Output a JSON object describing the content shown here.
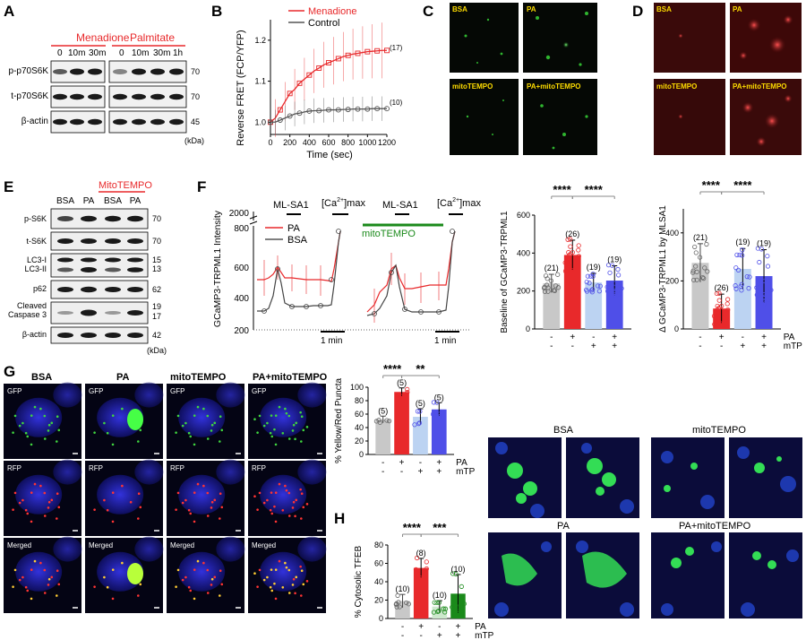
{
  "panel_letters": [
    "A",
    "B",
    "C",
    "D",
    "E",
    "F",
    "G",
    "H"
  ],
  "panelA": {
    "group1": "Menadione",
    "group2": "Palmitate",
    "times1": [
      "0",
      "10m",
      "30m"
    ],
    "times2": [
      "0",
      "10m",
      "30m",
      "1h"
    ],
    "rows": [
      "p-p70S6K",
      "t-p70S6K",
      "β-actin"
    ],
    "kda": [
      "70",
      "70",
      "45"
    ],
    "unit": "(kDa)"
  },
  "panelB": {
    "ylabel": "Reverse FRET (FCP/YFP)",
    "xlabel": "Time (sec)",
    "legend": [
      "Menadione",
      "Control"
    ],
    "n_labels": [
      "(17)",
      "(10)"
    ]
  },
  "panelC": {
    "labels": [
      "BSA",
      "PA",
      "mitoTEMPO",
      "PA+mitoTEMPO"
    ]
  },
  "panelD": {
    "labels": [
      "BSA",
      "PA",
      "mitoTEMPO",
      "PA+mitoTEMPO"
    ]
  },
  "panelE": {
    "header": "MitoTEMPO",
    "lanes": [
      "BSA",
      "PA",
      "BSA",
      "PA"
    ],
    "rows": [
      "p-S6K",
      "t-S6K",
      "LC3-I",
      "LC3-II",
      "p62",
      "Cleaved",
      "Caspase 3",
      "β-actin"
    ],
    "kda": [
      "70",
      "70",
      "15",
      "13",
      "62",
      "19",
      "17",
      "42"
    ],
    "unit": "(kDa)"
  },
  "panelF": {
    "ylabel": "GCaMP3-TRPML1 Intensity",
    "stim": "ML-SA1",
    "camax": "[Ca",
    "camax_sup": "2+",
    "camax_end": "]max",
    "legend": [
      "PA",
      "BSA"
    ],
    "mito": "mitoTEMPO",
    "scalebar": "1 min",
    "bar1_ylabel": "Baseline of GCaMP3-TRPML1",
    "bar2_ylabel": "Δ GCaMP3-TRPML1 by MLSA1",
    "row_pa": "PA",
    "row_mtp": "mTP",
    "sig": "****"
  },
  "panelG": {
    "cols": [
      "BSA",
      "PA",
      "mitoTEMPO",
      "PA+mitoTEMPO"
    ],
    "rows": [
      "GFP",
      "RFP",
      "Merged"
    ],
    "bar_ylabel": "% Yellow/Red Puncta",
    "sig": [
      "****",
      "**"
    ]
  },
  "panelH": {
    "ylabel": "% Cytosolic TFEB",
    "sig": [
      "****",
      "***"
    ],
    "img_labels": [
      "BSA",
      "mitoTEMPO",
      "PA",
      "PA+mitoTEMPO"
    ]
  },
  "colors": {
    "red": "#e8292b",
    "lightblue": "#bcd3f2",
    "blue": "#4f4fe8",
    "gray": "#c8c8c8",
    "green": "#1b8a1b"
  },
  "chart_data": [
    {
      "type": "line",
      "title": "",
      "xlabel": "Time (sec)",
      "ylabel": "Reverse FRET (FCP/YFP)",
      "x": [
        0,
        50,
        100,
        150,
        200,
        250,
        300,
        350,
        400,
        450,
        500,
        550,
        600,
        650,
        700,
        750,
        800,
        850,
        900,
        950,
        1000,
        1050,
        1100,
        1150,
        1200
      ],
      "xticks": [
        0,
        200,
        400,
        600,
        800,
        1000,
        1200
      ],
      "yticks": [
        1.0,
        1.1,
        1.2
      ],
      "ylim": [
        0.97,
        1.25
      ],
      "series": [
        {
          "name": "Menadione",
          "values": [
            1.0,
            1.01,
            1.03,
            1.05,
            1.07,
            1.08,
            1.095,
            1.105,
            1.115,
            1.125,
            1.132,
            1.14,
            1.145,
            1.15,
            1.155,
            1.16,
            1.163,
            1.166,
            1.168,
            1.17,
            1.172,
            1.173,
            1.174,
            1.175,
            1.175
          ]
        },
        {
          "name": "Control",
          "values": [
            1.0,
            1.0,
            1.005,
            1.01,
            1.015,
            1.02,
            1.022,
            1.025,
            1.027,
            1.028,
            1.028,
            1.029,
            1.03,
            1.03,
            1.03,
            1.031,
            1.031,
            1.032,
            1.032,
            1.032,
            1.032,
            1.033,
            1.033,
            1.033,
            1.033
          ]
        }
      ]
    },
    {
      "type": "bar",
      "title": "",
      "ylabel": "Baseline of GCaMP3-TRPML1",
      "categories": [
        "BSA",
        "PA",
        "mitoTEMPO",
        "PA+mitoTEMPO"
      ],
      "values": [
        240,
        390,
        245,
        255
      ],
      "n": [
        "(21)",
        "(26)",
        "(19)",
        "(19)"
      ],
      "ylim": [
        0,
        600
      ],
      "yticks": [
        0,
        200,
        400,
        600
      ]
    },
    {
      "type": "bar",
      "title": "",
      "ylabel": "Δ GCaMP3-TRPML1 by MLSA1",
      "categories": [
        "BSA",
        "PA",
        "mitoTEMPO",
        "PA+mitoTEMPO"
      ],
      "values": [
        275,
        85,
        250,
        220
      ],
      "n": [
        "(21)",
        "(26)",
        "(19)",
        "(19)"
      ],
      "ylim": [
        0,
        500
      ],
      "yticks": [
        0,
        200,
        400
      ]
    },
    {
      "type": "bar",
      "title": "",
      "ylabel": "% Yellow/Red Puncta",
      "categories": [
        "BSA",
        "PA",
        "mitoTEMPO",
        "PA+mitoTEMPO"
      ],
      "values": [
        52,
        93,
        56,
        67
      ],
      "n": [
        "(5)",
        "(5)",
        "(5)",
        "(5)"
      ],
      "ylim": [
        0,
        100
      ],
      "yticks": [
        0,
        20,
        40,
        60,
        80,
        100
      ]
    },
    {
      "type": "bar",
      "title": "",
      "ylabel": "% Cytosolic TFEB",
      "categories": [
        "BSA",
        "PA",
        "mitoTEMPO",
        "PA+mitoTEMPO"
      ],
      "values": [
        19,
        55,
        13,
        27
      ],
      "n": [
        "(10)",
        "(8)",
        "(10)",
        "(10)"
      ],
      "ylim": [
        0,
        80
      ],
      "yticks": [
        0,
        20,
        40,
        60,
        80
      ]
    }
  ]
}
